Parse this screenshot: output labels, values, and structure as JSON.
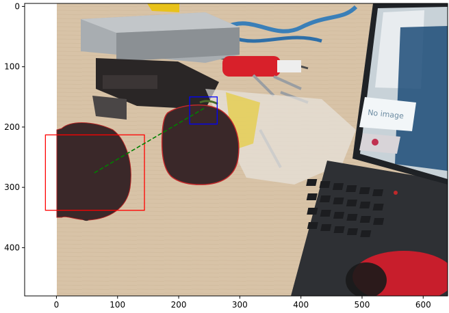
{
  "plot": {
    "x_ticks": [
      {
        "value": 0,
        "label": "0"
      },
      {
        "value": 100,
        "label": "100"
      },
      {
        "value": 200,
        "label": "200"
      },
      {
        "value": 300,
        "label": "300"
      },
      {
        "value": 400,
        "label": "400"
      },
      {
        "value": 500,
        "label": "500"
      },
      {
        "value": 600,
        "label": "600"
      }
    ],
    "y_ticks": [
      {
        "value": 0,
        "label": "0"
      },
      {
        "value": 100,
        "label": "100"
      },
      {
        "value": 200,
        "label": "200"
      },
      {
        "value": 300,
        "label": "300"
      },
      {
        "value": 400,
        "label": "400"
      }
    ],
    "xlim": [
      -52,
      640
    ],
    "ylim": [
      480,
      -5
    ],
    "image_extent": [
      0,
      640,
      480,
      0
    ],
    "annotations": {
      "red_box": {
        "x0": -18,
        "y0": 213,
        "x1": 144,
        "y1": 338,
        "color": "#ff0000"
      },
      "blue_box": {
        "x0": 218,
        "y0": 150,
        "x1": 263,
        "y1": 195,
        "color": "#0000ff"
      },
      "dashed_line": {
        "x0": 62,
        "y0": 276,
        "x1": 243,
        "y1": 168,
        "color": "#008000"
      }
    },
    "photo_text": {
      "screen_label": "No image"
    }
  }
}
